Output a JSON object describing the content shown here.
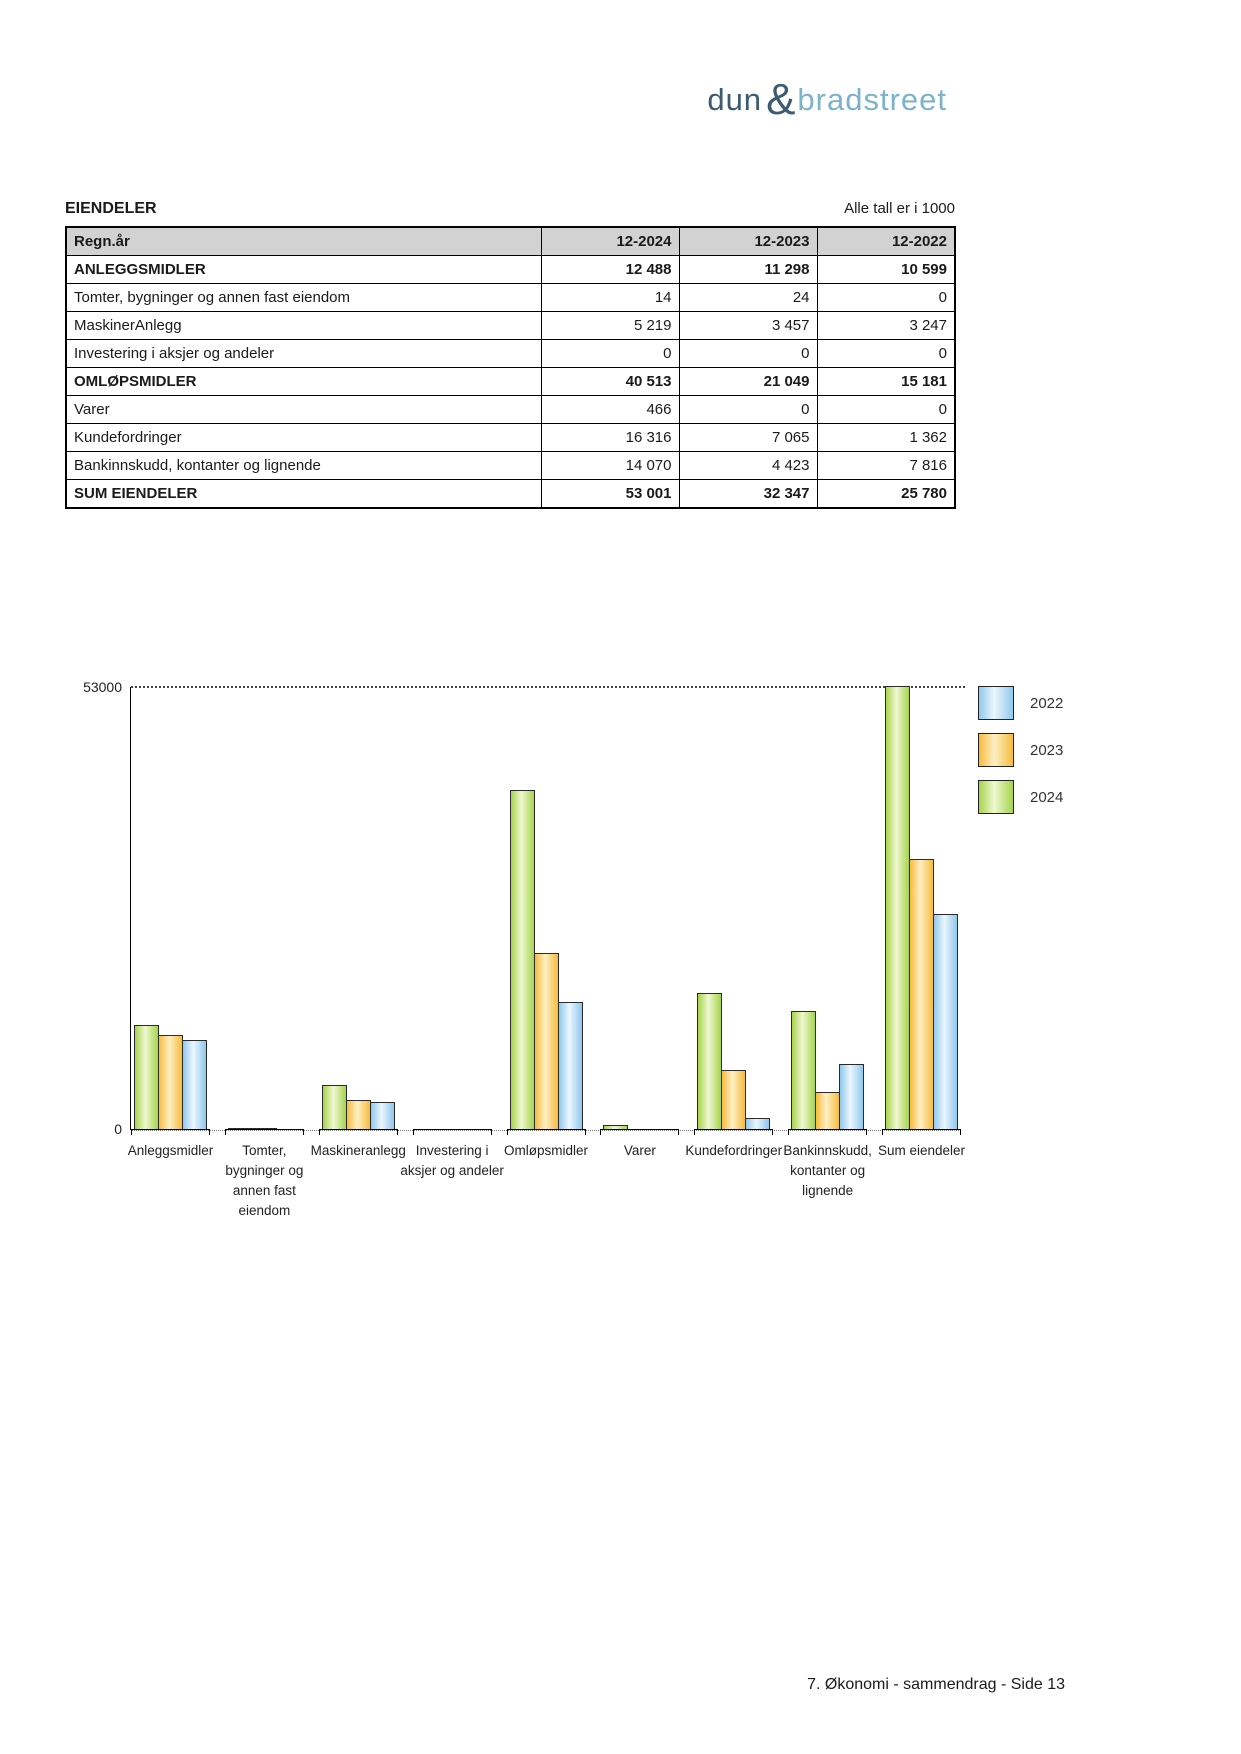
{
  "logo": {
    "part1": "dun",
    "amp": "&",
    "part2": "bradstreet",
    "color_dark": "#3e5a70",
    "color_light": "#7db3ca"
  },
  "header": {
    "title": "EIENDELER",
    "note": "Alle tall er i 1000"
  },
  "table": {
    "columns": [
      "Regn.år",
      "12-2024",
      "12-2023",
      "12-2022"
    ],
    "rows": [
      {
        "label": "ANLEGGSMIDLER",
        "values": [
          "12 488",
          "11 298",
          "10 599"
        ],
        "bold": true
      },
      {
        "label": "Tomter, bygninger og annen fast eiendom",
        "values": [
          "14",
          "24",
          "0"
        ],
        "bold": false
      },
      {
        "label": "MaskinerAnlegg",
        "values": [
          "5 219",
          "3 457",
          "3 247"
        ],
        "bold": false
      },
      {
        "label": "Investering i aksjer og andeler",
        "values": [
          "0",
          "0",
          "0"
        ],
        "bold": false
      },
      {
        "label": "OMLØPSMIDLER",
        "values": [
          "40 513",
          "21 049",
          "15 181"
        ],
        "bold": true
      },
      {
        "label": "Varer",
        "values": [
          "466",
          "0",
          "0"
        ],
        "bold": false
      },
      {
        "label": "Kundefordringer",
        "values": [
          "16 316",
          "7 065",
          "1 362"
        ],
        "bold": false
      },
      {
        "label": "Bankinnskudd, kontanter og lignende",
        "values": [
          "14 070",
          "4 423",
          "7 816"
        ],
        "bold": false
      },
      {
        "label": "SUM EIENDELER",
        "values": [
          "53 001",
          "32 347",
          "25 780"
        ],
        "bold": true
      }
    ]
  },
  "chart_data": {
    "type": "bar",
    "categories": [
      "Anleggsmidler",
      "Tomter, bygninger og annen fast eiendom",
      "Maskineranlegg",
      "Investering i aksjer og andeler",
      "Omløpsmidler",
      "Varer",
      "Kundefordringer",
      "Bankinnskudd, kontanter og lignende",
      "Sum eiendeler"
    ],
    "series": [
      {
        "name": "2024",
        "values": [
          12488,
          14,
          5219,
          0,
          40513,
          466,
          16316,
          14070,
          53001
        ],
        "color_edge": "#a6d44c",
        "color_light": "#eff8d2"
      },
      {
        "name": "2023",
        "values": [
          11298,
          24,
          3457,
          0,
          21049,
          0,
          7065,
          4423,
          32347
        ],
        "color_edge": "#f7bb3e",
        "color_light": "#fdf0c4"
      },
      {
        "name": "2022",
        "values": [
          10599,
          0,
          3247,
          0,
          15181,
          0,
          1362,
          7816,
          25780
        ],
        "color_edge": "#8fc8ee",
        "color_light": "#ecf6fd"
      }
    ],
    "legend_order": [
      "2022",
      "2023",
      "2024"
    ],
    "legend_position": "right-top",
    "ylim": [
      0,
      53000
    ],
    "y_top_label": "53000",
    "y_zero_label": "0",
    "grid": "top-dashed-reference-line-only"
  },
  "footer": {
    "text": "7. Økonomi - sammendrag - Side 13"
  }
}
